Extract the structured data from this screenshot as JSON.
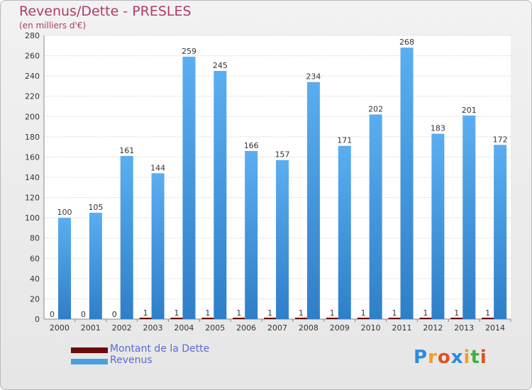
{
  "chart_data": {
    "type": "bar",
    "title": "Revenus/Dette - PRESLES",
    "subtitle": "(en milliers d'€)",
    "categories": [
      "2000",
      "2001",
      "2002",
      "2003",
      "2004",
      "2005",
      "2006",
      "2007",
      "2008",
      "2009",
      "2010",
      "2011",
      "2012",
      "2013",
      "2014"
    ],
    "series": [
      {
        "name": "Montant de la Dette",
        "color": "#6b0a0a",
        "values": [
          0,
          0,
          0,
          1,
          1,
          1,
          1,
          1,
          1,
          1,
          1,
          1,
          1,
          1,
          1
        ]
      },
      {
        "name": "Revenus",
        "color": "#4a9fe0",
        "values": [
          100,
          105,
          161,
          144,
          259,
          245,
          166,
          157,
          234,
          171,
          202,
          268,
          183,
          201,
          172
        ]
      }
    ],
    "ylim": [
      0,
      280
    ],
    "yticks": [
      0,
      20,
      40,
      60,
      80,
      100,
      120,
      140,
      160,
      180,
      200,
      220,
      240,
      260,
      280
    ],
    "grid": true,
    "legend": "bottom-left"
  },
  "logo": {
    "letters": [
      "P",
      "r",
      "o",
      "x",
      "i",
      "t",
      "i"
    ],
    "colors": [
      "#2b8be0",
      "#f0a020",
      "#e05020",
      "#2b8be0",
      "#f0a020",
      "#40b040",
      "#e05020"
    ]
  }
}
